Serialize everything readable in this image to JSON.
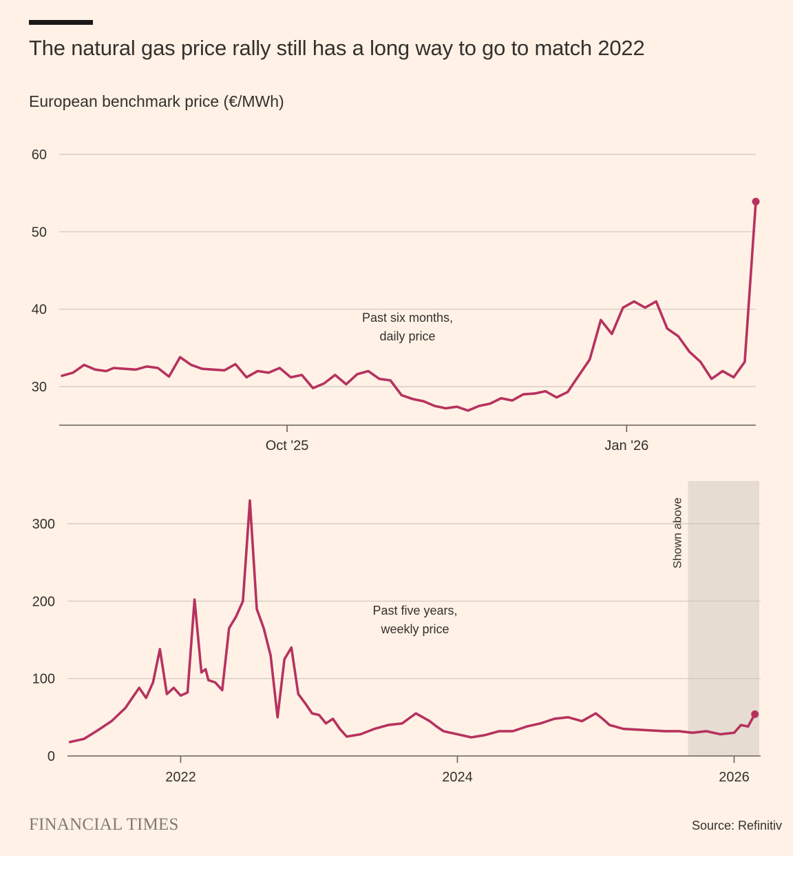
{
  "header": {
    "title": "The natural gas price rally still has a long way to go to match 2022",
    "subtitle": "European benchmark price (€/MWh)"
  },
  "footer": {
    "brand": "FINANCIAL TIMES",
    "source": "Source: Refinitiv"
  },
  "colors": {
    "background": "#fff1e5",
    "line": "#b6325f",
    "grid": "#cfc5bb",
    "axis": "#66605c",
    "text": "#33302e",
    "shade": "#e6dcd2"
  },
  "chart_data": [
    {
      "type": "line",
      "name_label": [
        "Past six months,",
        "daily price"
      ],
      "ylim": [
        25,
        60
      ],
      "yticks": [
        30,
        40,
        50,
        60
      ],
      "xlim": [
        "2025-08-01",
        "2026-02-05"
      ],
      "xticks": [
        {
          "date": "2025-10-01",
          "label": "Oct '25"
        },
        {
          "date": "2026-01-01",
          "label": "Jan '26"
        }
      ],
      "grid": true,
      "end_marker": true,
      "x": [
        "2025-08-01",
        "2025-08-04",
        "2025-08-07",
        "2025-08-10",
        "2025-08-13",
        "2025-08-15",
        "2025-08-18",
        "2025-08-21",
        "2025-08-24",
        "2025-08-27",
        "2025-08-30",
        "2025-09-02",
        "2025-09-05",
        "2025-09-08",
        "2025-09-11",
        "2025-09-14",
        "2025-09-17",
        "2025-09-20",
        "2025-09-23",
        "2025-09-26",
        "2025-09-29",
        "2025-10-02",
        "2025-10-05",
        "2025-10-08",
        "2025-10-11",
        "2025-10-14",
        "2025-10-17",
        "2025-10-20",
        "2025-10-23",
        "2025-10-26",
        "2025-10-29",
        "2025-11-01",
        "2025-11-04",
        "2025-11-07",
        "2025-11-10",
        "2025-11-13",
        "2025-11-16",
        "2025-11-19",
        "2025-11-22",
        "2025-11-25",
        "2025-11-28",
        "2025-12-01",
        "2025-12-04",
        "2025-12-07",
        "2025-12-10",
        "2025-12-13",
        "2025-12-16",
        "2025-12-19",
        "2025-12-22",
        "2025-12-25",
        "2025-12-28",
        "2025-12-31",
        "2026-01-03",
        "2026-01-06",
        "2026-01-09",
        "2026-01-12",
        "2026-01-15",
        "2026-01-18",
        "2026-01-21",
        "2026-01-24",
        "2026-01-27",
        "2026-01-30",
        "2026-02-02",
        "2026-02-05"
      ],
      "values": [
        31.4,
        31.8,
        32.8,
        32.2,
        32.0,
        32.4,
        32.3,
        32.2,
        32.6,
        32.4,
        31.3,
        33.8,
        32.8,
        32.3,
        32.2,
        32.1,
        32.9,
        31.2,
        32.0,
        31.8,
        32.4,
        31.2,
        31.5,
        29.8,
        30.4,
        31.5,
        30.3,
        31.6,
        32.0,
        31.0,
        30.8,
        28.9,
        28.4,
        28.1,
        27.5,
        27.2,
        27.4,
        26.9,
        27.5,
        27.8,
        28.5,
        28.2,
        29.0,
        29.1,
        29.4,
        28.6,
        29.3,
        31.4,
        33.5,
        38.6,
        36.8,
        40.2,
        41.0,
        40.2,
        41.0,
        37.5,
        36.5,
        34.5,
        33.2,
        31.0,
        32.0,
        31.2,
        33.2,
        53.9
      ]
    },
    {
      "type": "line",
      "name_label": [
        "Past five years,",
        "weekly price"
      ],
      "ylim": [
        0,
        350
      ],
      "yticks": [
        0,
        100,
        200,
        300
      ],
      "xlim": [
        2021.1917,
        2026.1667
      ],
      "xticks": [
        {
          "value": 2022,
          "label": "2022"
        },
        {
          "value": 2024,
          "label": "2024"
        },
        {
          "value": 2026,
          "label": "2026"
        }
      ],
      "shaded_region": {
        "from": 2025.6667,
        "to": 2026.1817,
        "label": "Shown above"
      },
      "grid": true,
      "end_marker": true,
      "x": [
        2021.2,
        2021.3,
        2021.4,
        2021.5,
        2021.6,
        2021.7,
        2021.75,
        2021.8,
        2021.85,
        2021.9,
        2021.95,
        2022.0,
        2022.05,
        2022.1,
        2022.15,
        2022.18,
        2022.2,
        2022.25,
        2022.3,
        2022.35,
        2022.4,
        2022.45,
        2022.5,
        2022.55,
        2022.6,
        2022.65,
        2022.7,
        2022.75,
        2022.8,
        2022.85,
        2022.9,
        2022.95,
        2023.0,
        2023.05,
        2023.1,
        2023.15,
        2023.2,
        2023.3,
        2023.4,
        2023.5,
        2023.6,
        2023.7,
        2023.8,
        2023.85,
        2023.9,
        2024.0,
        2024.1,
        2024.2,
        2024.3,
        2024.4,
        2024.5,
        2024.6,
        2024.7,
        2024.8,
        2024.9,
        2025.0,
        2025.05,
        2025.1,
        2025.2,
        2025.3,
        2025.4,
        2025.5,
        2025.6,
        2025.7,
        2025.8,
        2025.9,
        2026.0,
        2026.05,
        2026.1,
        2026.15
      ],
      "values": [
        18,
        22,
        33,
        45,
        62,
        88,
        75,
        95,
        138,
        80,
        88,
        78,
        82,
        202,
        108,
        112,
        98,
        95,
        85,
        165,
        180,
        200,
        330,
        190,
        165,
        130,
        50,
        125,
        140,
        80,
        68,
        55,
        53,
        42,
        48,
        35,
        25,
        28,
        35,
        40,
        42,
        55,
        45,
        38,
        32,
        28,
        24,
        27,
        32,
        32,
        38,
        42,
        48,
        50,
        45,
        55,
        48,
        40,
        35,
        34,
        33,
        32,
        32,
        30,
        32,
        28,
        30,
        40,
        38,
        54
      ]
    }
  ]
}
